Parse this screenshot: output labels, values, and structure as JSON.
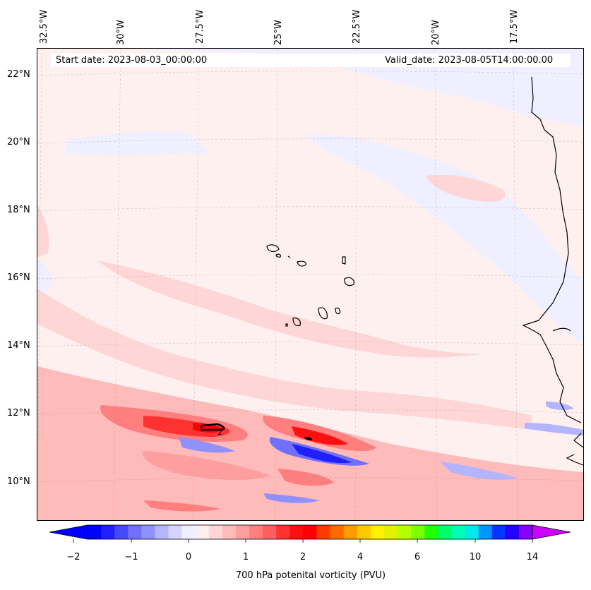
{
  "header": {
    "start_date": "Start date: 2023-08-03_00:00:00",
    "valid_date": "Valid_date: 2023-08-05T14:00:00.00"
  },
  "axes": {
    "lon_labels": [
      "32.5°W",
      "30°W",
      "27.5°W",
      "25°W",
      "22.5°W",
      "20°W",
      "17.5°W"
    ],
    "lat_labels": [
      "22°N",
      "20°N",
      "18°N",
      "16°N",
      "14°N",
      "12°N",
      "10°N"
    ],
    "grid": "on"
  },
  "colorbar": {
    "label": "700 hPa potenital vorticity (PVU)",
    "tick_labels": [
      "−2",
      "−1",
      "0",
      "1",
      "2",
      "4",
      "6",
      "10",
      "14"
    ],
    "colors": [
      "#0000ff",
      "#2020ff",
      "#4848ff",
      "#7070ff",
      "#9090ff",
      "#b4b4ff",
      "#d4d4ff",
      "#efefff",
      "#ffeeee",
      "#ffd6d6",
      "#ffbaba",
      "#ff9e9e",
      "#ff7e7e",
      "#ff5e5e",
      "#ff3232",
      "#ff1010",
      "#ff0000",
      "#ff3a00",
      "#ff6a00",
      "#ff9a00",
      "#ffc800",
      "#fff000",
      "#e4f000",
      "#b4ff00",
      "#7cff00",
      "#22ff00",
      "#00ff66",
      "#00ffb4",
      "#00e8e8",
      "#0096ff",
      "#0036ff",
      "#2600ff",
      "#8a00ff"
    ],
    "extend_low_color": "#0000ff",
    "extend_high_color": "#cc00ff"
  },
  "map": {
    "contour_label": "2",
    "coastline_color": "#000000",
    "background_field_color": "#fff0f0"
  }
}
